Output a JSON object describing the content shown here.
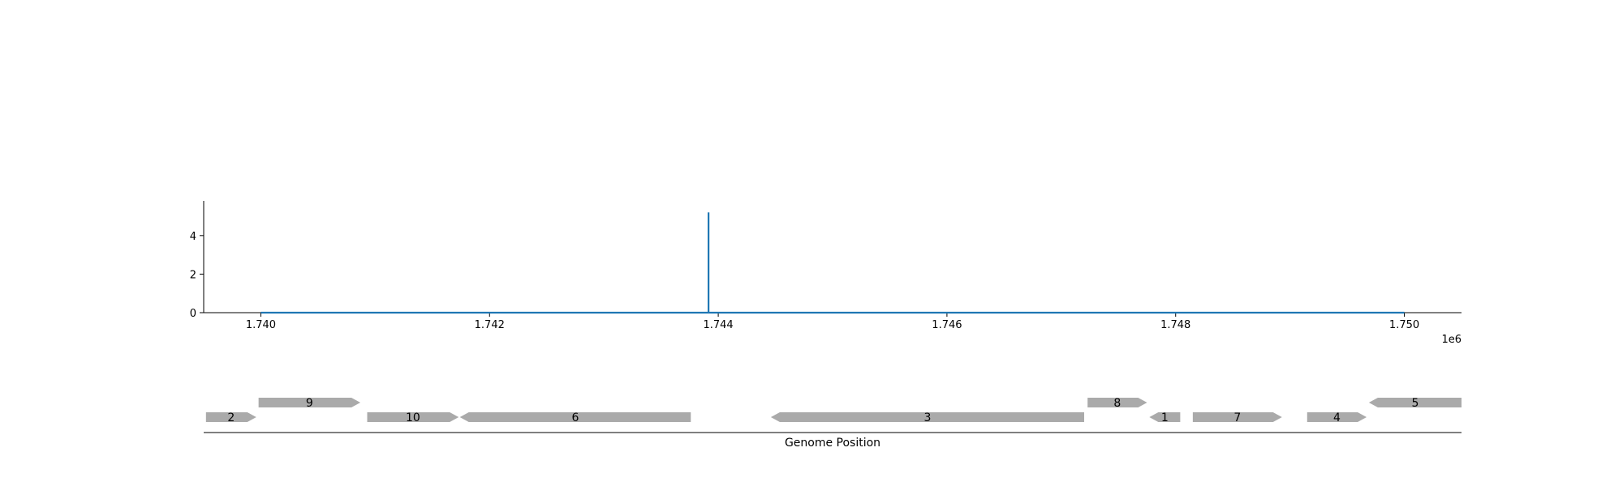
{
  "chart_data": [
    {
      "type": "line",
      "series": [
        {
          "x": [
            1740000,
            1743915,
            1743915,
            1743915,
            1743915,
            1750000
          ],
          "values": [
            0,
            0,
            5.2,
            5.2,
            0,
            0
          ],
          "color": "#1f77b4"
        }
      ],
      "x_range": [
        1739500,
        1750500
      ],
      "ylim": [
        0,
        5.8
      ],
      "x_ticks": [
        1740000,
        1742000,
        1744000,
        1746000,
        1748000,
        1750000
      ],
      "x_tick_labels": [
        "1.740",
        "1.742",
        "1.744",
        "1.746",
        "1.748",
        "1.750"
      ],
      "x_offset_label": "1e6",
      "y_ticks": [
        0,
        2,
        4
      ],
      "y_tick_labels": [
        "0",
        "2",
        "4"
      ],
      "grid": false,
      "spines": "left-bottom"
    },
    {
      "type": "gene-track",
      "xlabel": "Genome Position",
      "x_range": [
        1739500,
        1750500
      ],
      "feature_color": "#aaaaaa",
      "features": [
        {
          "label": "2",
          "start": 1739520,
          "end": 1739960,
          "strand": "+",
          "row": 0
        },
        {
          "label": "9",
          "start": 1739980,
          "end": 1740870,
          "strand": "+",
          "row": 1
        },
        {
          "label": "10",
          "start": 1740930,
          "end": 1741730,
          "strand": "+",
          "row": 0
        },
        {
          "label": "6",
          "start": 1741740,
          "end": 1743760,
          "strand": "-",
          "row": 0
        },
        {
          "label": "3",
          "start": 1744460,
          "end": 1747200,
          "strand": "-",
          "row": 0
        },
        {
          "label": "8",
          "start": 1747230,
          "end": 1747750,
          "strand": "+",
          "row": 1
        },
        {
          "label": "1",
          "start": 1747770,
          "end": 1748040,
          "strand": "-",
          "row": 0
        },
        {
          "label": "7",
          "start": 1748150,
          "end": 1748930,
          "strand": "+",
          "row": 0
        },
        {
          "label": "4",
          "start": 1749150,
          "end": 1749670,
          "strand": "+",
          "row": 0
        },
        {
          "label": "5",
          "start": 1749690,
          "end": 1750500,
          "strand": "-",
          "row": 1
        }
      ]
    }
  ]
}
